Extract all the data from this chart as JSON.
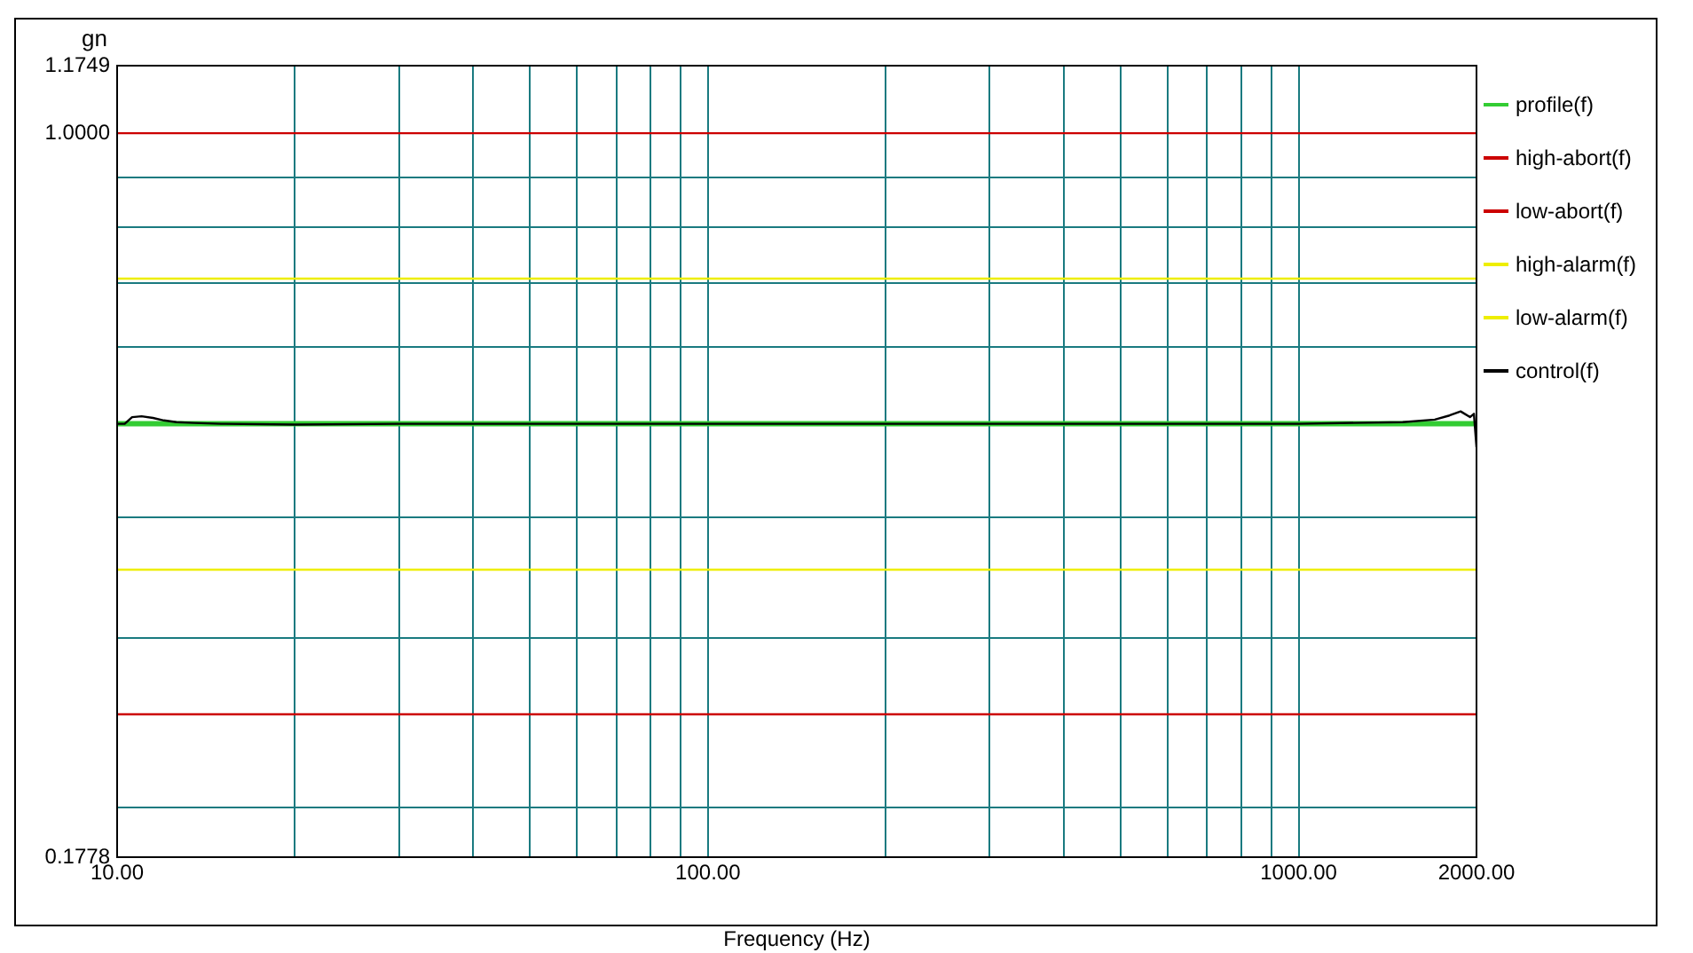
{
  "chart_data": {
    "type": "line",
    "ylabel": "gn",
    "xlabel": "Frequency (Hz)",
    "log": "xy",
    "grid": true,
    "legend": "right",
    "marker": "none",
    "line_style": "solid",
    "xlim": [
      10,
      2000
    ],
    "ylim": [
      0.1778,
      1.1749
    ],
    "xticks": [
      {
        "value": 10,
        "label": "10.00"
      },
      {
        "value": 20,
        "label": null
      },
      {
        "value": 30,
        "label": null
      },
      {
        "value": 40,
        "label": null
      },
      {
        "value": 50,
        "label": null
      },
      {
        "value": 60,
        "label": null
      },
      {
        "value": 70,
        "label": null
      },
      {
        "value": 80,
        "label": null
      },
      {
        "value": 90,
        "label": null
      },
      {
        "value": 100,
        "label": "100.00"
      },
      {
        "value": 200,
        "label": null
      },
      {
        "value": 300,
        "label": null
      },
      {
        "value": 400,
        "label": null
      },
      {
        "value": 500,
        "label": null
      },
      {
        "value": 600,
        "label": null
      },
      {
        "value": 700,
        "label": null
      },
      {
        "value": 800,
        "label": null
      },
      {
        "value": 900,
        "label": null
      },
      {
        "value": 1000,
        "label": "1000.00"
      },
      {
        "value": 2000,
        "label": "2000.00"
      }
    ],
    "yticks": [
      0.1778,
      {
        "value": 0.2,
        "label": null
      },
      {
        "value": 0.3,
        "label": null
      },
      {
        "value": 0.4,
        "label": null
      },
      {
        "value": 0.5,
        "label": null
      },
      {
        "value": 0.6,
        "label": null
      },
      {
        "value": 0.7,
        "label": null
      },
      {
        "value": 0.8,
        "label": null
      },
      {
        "value": 0.9,
        "label": null
      },
      {
        "value": 1,
        "label": "1.0000"
      },
      1.1749
    ],
    "series": [
      {
        "name": "profile(f)",
        "color": "#33cc33",
        "x": [
          10,
          2000
        ],
        "values": [
          0.5,
          0.5
        ]
      },
      {
        "name": "high-abort(f)",
        "color": "#cc0000",
        "x": [
          10,
          2000
        ],
        "values": [
          1.0,
          1.0
        ]
      },
      {
        "name": "low-abort(f)",
        "color": "#cc0000",
        "x": [
          10,
          2000
        ],
        "values": [
          0.25,
          0.25
        ]
      },
      {
        "name": "high-alarm(f)",
        "color": "#eeee00",
        "x": [
          10,
          2000
        ],
        "values": [
          0.707,
          0.707
        ]
      },
      {
        "name": "low-alarm(f)",
        "color": "#eeee00",
        "x": [
          10,
          2000
        ],
        "values": [
          0.353,
          0.353
        ]
      },
      {
        "name": "control(f)",
        "color": "#000000",
        "x": [
          10,
          10.3,
          10.6,
          11,
          11.5,
          12,
          12.6,
          13.5,
          15,
          20,
          30,
          50,
          100,
          200,
          500,
          1000,
          1500,
          1700,
          1800,
          1880,
          1950,
          1980,
          2000
        ],
        "values": [
          0.5,
          0.5,
          0.508,
          0.509,
          0.507,
          0.504,
          0.502,
          0.501,
          0.5,
          0.499,
          0.5,
          0.5,
          0.5,
          0.5,
          0.5,
          0.5,
          0.502,
          0.505,
          0.51,
          0.515,
          0.508,
          0.512,
          0.473
        ]
      }
    ]
  }
}
